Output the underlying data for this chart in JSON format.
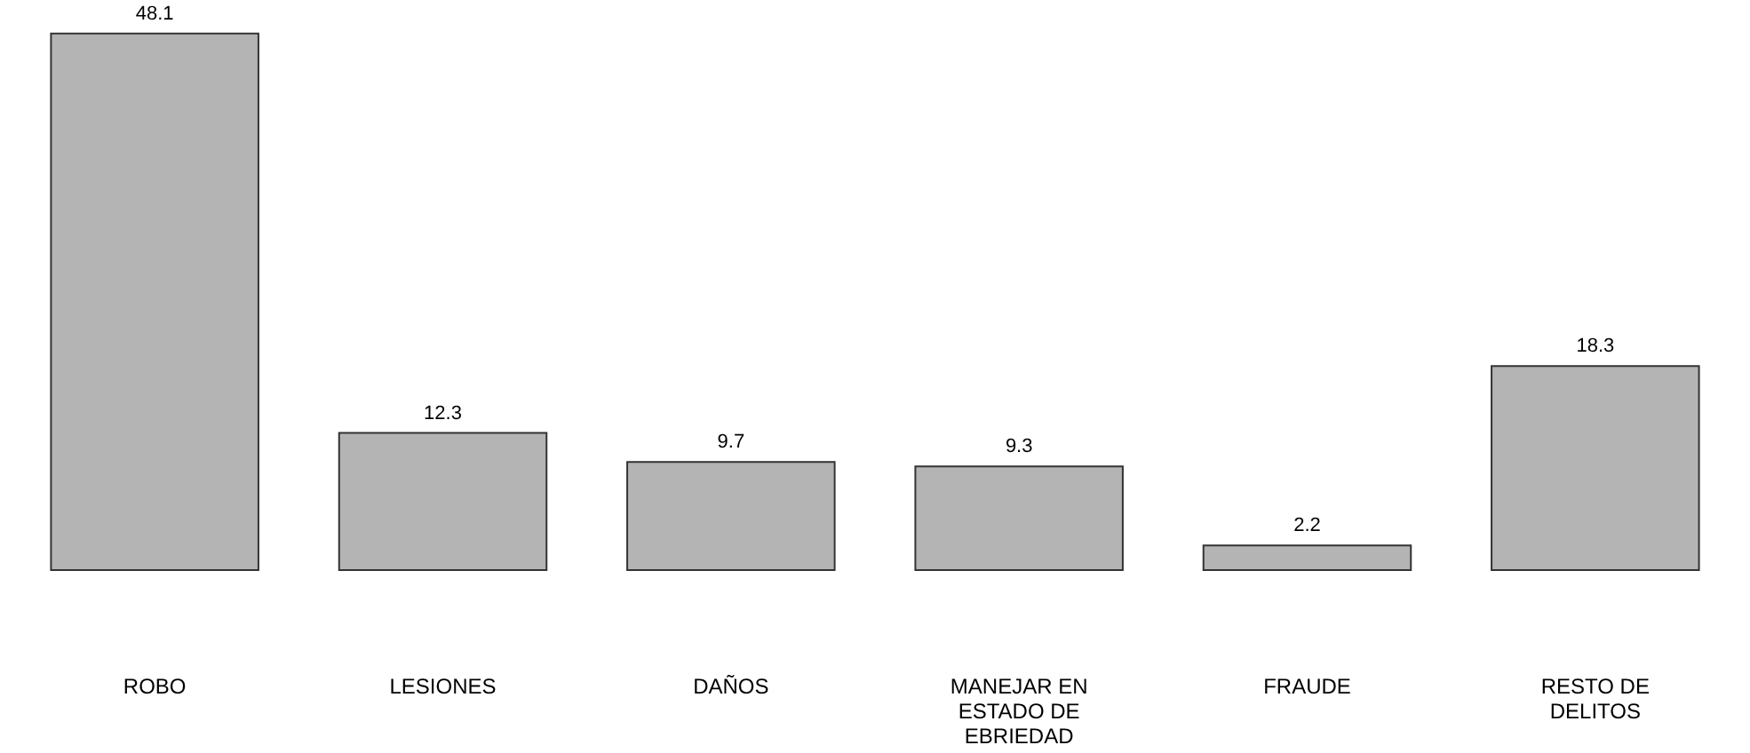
{
  "chart_data": {
    "type": "bar",
    "categories": [
      "ROBO",
      "LESIONES",
      "DAÑOS",
      "MANEJAR EN\nESTADO DE\nEBRIEDAD",
      "FRAUDE",
      "RESTO DE\nDELITOS"
    ],
    "values": [
      48.1,
      12.3,
      9.7,
      9.3,
      2.2,
      18.3
    ],
    "color": "#b4b4b4",
    "data_labels": true
  }
}
